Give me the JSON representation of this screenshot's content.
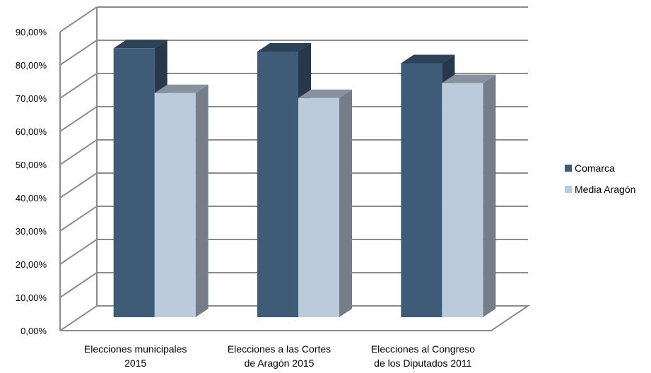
{
  "chart_data": {
    "type": "bar",
    "style": "3d-clustered-column",
    "categories": [
      [
        "Elecciones municipales",
        "2015"
      ],
      [
        "Elecciones a las Cortes",
        "de Aragón 2015"
      ],
      [
        "Elecciones al Congreso",
        "de los Diputados 2011"
      ]
    ],
    "series": [
      {
        "name": "Comarca",
        "values": [
          81.0,
          80.0,
          76.5
        ],
        "color": "#3e5b78"
      },
      {
        "name": "Media Aragón",
        "values": [
          67.5,
          66.0,
          70.5
        ],
        "color": "#bccbdb"
      }
    ],
    "ylim": [
      0,
      90
    ],
    "yticks": [
      "0,00%",
      "10,00%",
      "20,00%",
      "30,00%",
      "40,00%",
      "50,00%",
      "60,00%",
      "70,00%",
      "80,00%",
      "90,00%"
    ],
    "grid": true,
    "legend_position": "right",
    "title": "",
    "xlabel": "",
    "ylabel": ""
  }
}
